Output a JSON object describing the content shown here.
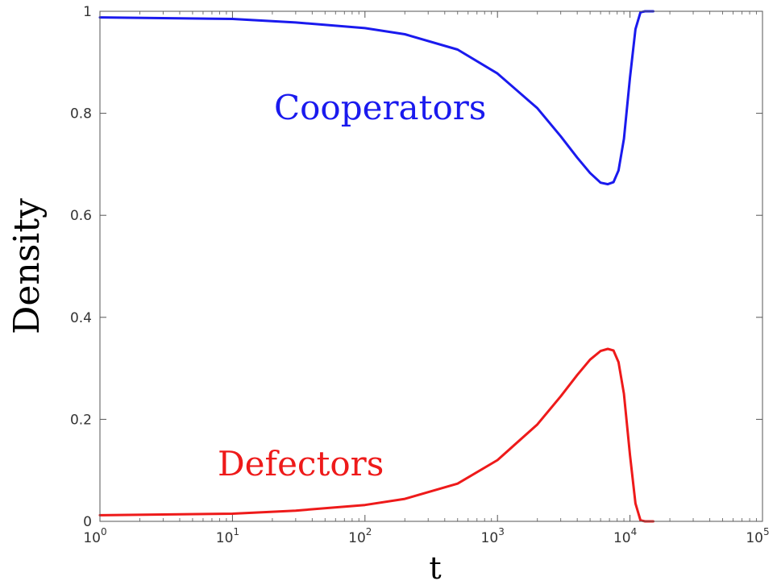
{
  "chart_data": {
    "type": "line",
    "xscale": "log",
    "xlim": [
      1,
      100000
    ],
    "ylim": [
      0,
      1
    ],
    "xlabel": "t",
    "ylabel": "Density",
    "grid": false,
    "x_ticks": [
      {
        "base": "10",
        "exp": "0",
        "value": 1
      },
      {
        "base": "10",
        "exp": "1",
        "value": 10
      },
      {
        "base": "10",
        "exp": "2",
        "value": 100
      },
      {
        "base": "10",
        "exp": "3",
        "value": 1000
      },
      {
        "base": "10",
        "exp": "4",
        "value": 10000
      },
      {
        "base": "10",
        "exp": "5",
        "value": 100000
      }
    ],
    "y_ticks": [
      "0",
      "0.2",
      "0.4",
      "0.6",
      "0.8",
      "1"
    ],
    "series": [
      {
        "name": "Cooperators",
        "color": "#1a1aee",
        "x": [
          1,
          10,
          30,
          100,
          200,
          500,
          1000,
          2000,
          3000,
          4000,
          5000,
          6000,
          6800,
          7500,
          8200,
          9000,
          10000,
          11000,
          12000,
          13000,
          14000,
          15000
        ],
        "y": [
          0.988,
          0.985,
          0.978,
          0.967,
          0.955,
          0.925,
          0.878,
          0.81,
          0.755,
          0.713,
          0.683,
          0.664,
          0.661,
          0.665,
          0.688,
          0.75,
          0.87,
          0.965,
          0.998,
          1.0,
          1.0,
          1.0
        ]
      },
      {
        "name": "Defectors",
        "color": "#ee1a1a",
        "x": [
          1,
          10,
          30,
          100,
          200,
          500,
          1000,
          2000,
          3000,
          4000,
          5000,
          6000,
          6800,
          7500,
          8200,
          9000,
          10000,
          11000,
          12000,
          13000,
          14000,
          15000
        ],
        "y": [
          0.012,
          0.015,
          0.021,
          0.032,
          0.044,
          0.074,
          0.12,
          0.19,
          0.245,
          0.287,
          0.317,
          0.334,
          0.338,
          0.335,
          0.312,
          0.25,
          0.13,
          0.035,
          0.002,
          0.0,
          0.0,
          0.0
        ]
      }
    ]
  }
}
